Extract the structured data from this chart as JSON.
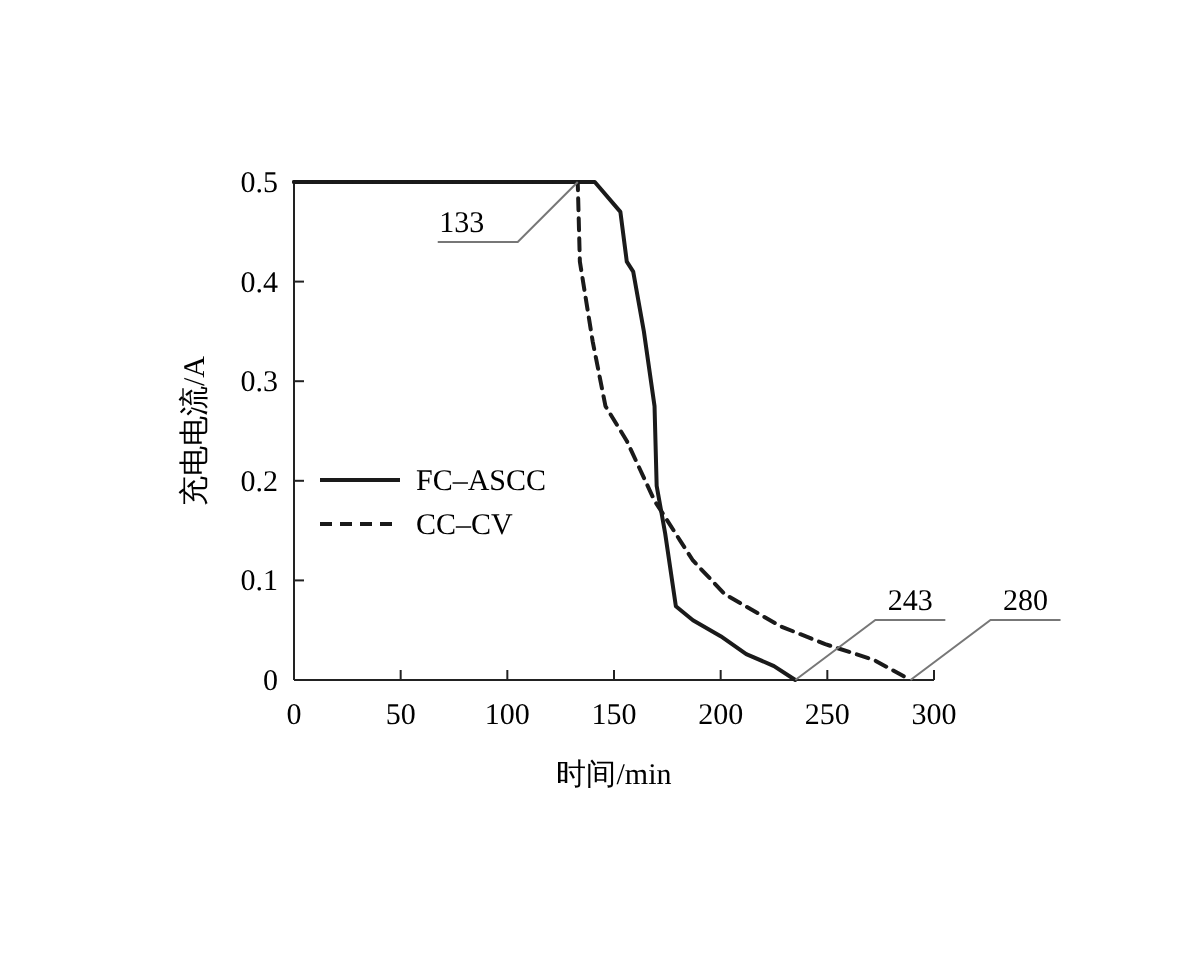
{
  "chart_data": {
    "type": "line",
    "xlabel": "时间/min",
    "ylabel": "充电电流/A",
    "xlim": [
      0,
      300
    ],
    "ylim": [
      0,
      0.5
    ],
    "xticks": [
      0,
      50,
      100,
      150,
      200,
      250,
      300
    ],
    "yticks": [
      0,
      0.1,
      0.2,
      0.3,
      0.4,
      0.5
    ],
    "grid": false,
    "legend": "left",
    "series": [
      {
        "name": "FC–ASCC",
        "color": "#1a1a1a",
        "line_style": "solid",
        "x": [
          0,
          141,
          153,
          156,
          159,
          164,
          169,
          170,
          174,
          179,
          187,
          200,
          212,
          225,
          235
        ],
        "values": [
          0.5,
          0.5,
          0.47,
          0.42,
          0.41,
          0.35,
          0.275,
          0.195,
          0.147,
          0.074,
          0.06,
          0.044,
          0.026,
          0.014,
          0
        ]
      },
      {
        "name": "CC–CV",
        "color": "#1a1a1a",
        "line_style": "dashed",
        "x": [
          0,
          133,
          134,
          140,
          146,
          156,
          169,
          181,
          187,
          202,
          228,
          249,
          272,
          289
        ],
        "values": [
          0.5,
          0.5,
          0.42,
          0.34,
          0.275,
          0.24,
          0.18,
          0.14,
          0.12,
          0.086,
          0.054,
          0.036,
          0.02,
          0
        ]
      }
    ],
    "annotations": [
      {
        "text": "133",
        "x": 133,
        "y": 0.5
      },
      {
        "text": "243",
        "x": 235,
        "y": 0
      },
      {
        "text": "280",
        "x": 289,
        "y": 0
      }
    ]
  }
}
